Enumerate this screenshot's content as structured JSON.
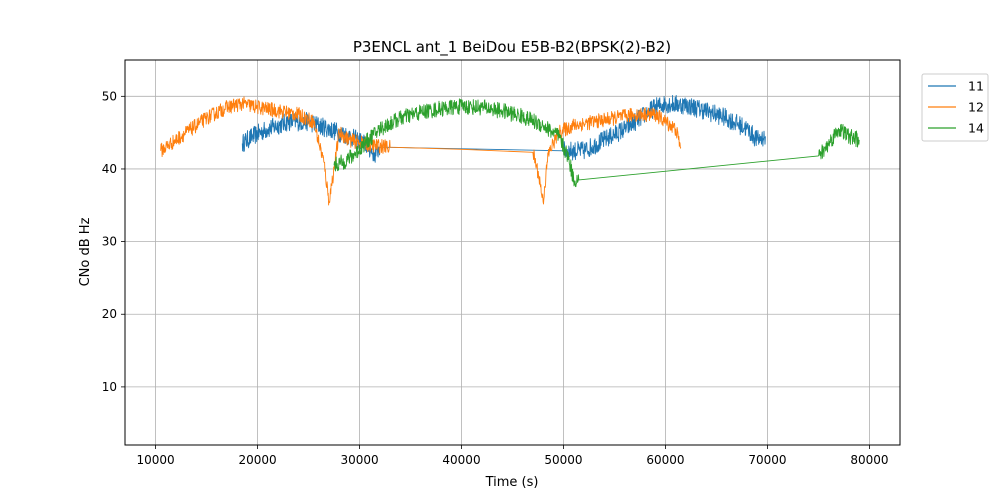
{
  "chart_data": {
    "type": "line",
    "title": "P3ENCL ant_1 BeiDou E5B-B2(BPSK(2)-B2)",
    "xlabel": "Time (s)",
    "ylabel": "CNo dB Hz",
    "xlim": [
      7000,
      83000
    ],
    "ylim": [
      2,
      55
    ],
    "xticks": [
      10000,
      20000,
      30000,
      40000,
      50000,
      60000,
      70000,
      80000
    ],
    "yticks": [
      10,
      20,
      30,
      40,
      50
    ],
    "xtick_labels": [
      "10000",
      "20000",
      "30000",
      "40000",
      "50000",
      "60000",
      "70000",
      "80000"
    ],
    "ytick_labels": [
      "10",
      "20",
      "30",
      "40",
      "50"
    ],
    "grid": true,
    "legend_position": "outside-top-right",
    "series": [
      {
        "name": "11",
        "color": "#1f77b4",
        "noise": 1.3,
        "x": [
          18500,
          19500,
          21000,
          23000,
          25000,
          27000,
          29000,
          30500,
          31500,
          32000,
          50000,
          51000,
          52000,
          54000,
          56000,
          58000,
          59000,
          60000,
          62000,
          64000,
          66000,
          68000,
          69000,
          69800
        ],
        "y": [
          43.5,
          44.5,
          45.5,
          46.5,
          46.5,
          45.5,
          44.5,
          43.5,
          42.0,
          43.0,
          42.5,
          42.5,
          42.5,
          44.0,
          45.5,
          47.5,
          48.5,
          49.0,
          48.8,
          48.0,
          47.0,
          45.5,
          44.0,
          44.5
        ]
      },
      {
        "name": "12",
        "color": "#ff7f0e",
        "noise": 1.0,
        "x": [
          10500,
          11500,
          13000,
          15000,
          17000,
          18500,
          20000,
          22000,
          24000,
          25500,
          26500,
          27000,
          27500,
          28000,
          29000,
          31000,
          33000,
          40000,
          47000,
          47600,
          48000,
          48500,
          49500,
          51000,
          53000,
          55000,
          57000,
          59000,
          60000,
          61000,
          61500
        ],
        "y": [
          42.5,
          43.5,
          45.0,
          47.0,
          48.5,
          49.0,
          48.5,
          48.0,
          47.5,
          46.5,
          41.0,
          35.5,
          40.0,
          45.0,
          44.0,
          43.3,
          43.0,
          42.7,
          42.3,
          39.0,
          35.5,
          42.0,
          45.0,
          46.0,
          46.5,
          47.0,
          47.5,
          47.5,
          46.5,
          45.5,
          43.0
        ]
      },
      {
        "name": "14",
        "color": "#2ca02c",
        "noise": 1.1,
        "x": [
          27500,
          28500,
          29500,
          30500,
          32000,
          34000,
          36000,
          38000,
          40000,
          42000,
          44000,
          46000,
          48000,
          49500,
          50500,
          51000,
          51500,
          75000,
          75500,
          76000,
          77000,
          78000,
          79000
        ],
        "y": [
          40.5,
          41.0,
          42.0,
          43.5,
          45.5,
          47.0,
          47.8,
          48.3,
          48.6,
          48.5,
          48.0,
          47.2,
          46.0,
          44.5,
          41.5,
          38.5,
          38.5,
          41.8,
          42.5,
          43.5,
          45.5,
          44.5,
          44.0
        ]
      }
    ]
  }
}
